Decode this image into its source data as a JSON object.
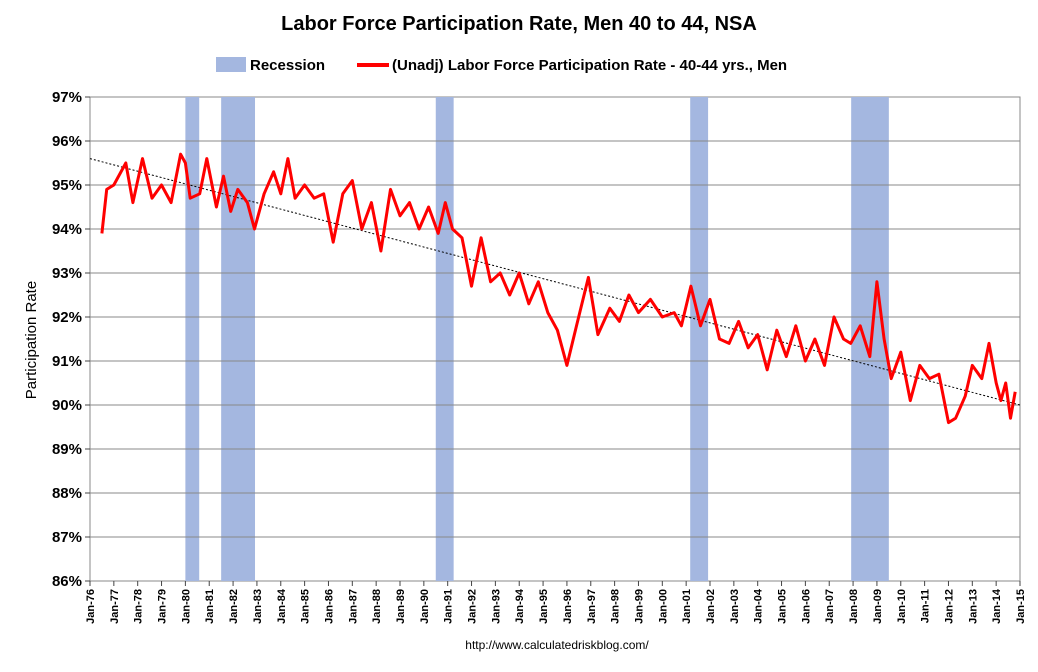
{
  "chart_data": {
    "type": "line",
    "title": "Labor Force Participation Rate, Men 40 to 44, NSA",
    "xlabel": "",
    "ylabel": "Participation Rate",
    "ylim": [
      86,
      97
    ],
    "yticks": [
      "86%",
      "87%",
      "88%",
      "89%",
      "90%",
      "91%",
      "92%",
      "93%",
      "94%",
      "95%",
      "96%",
      "97%"
    ],
    "x_tick_labels": [
      "Jan-76",
      "Jan-77",
      "Jan-78",
      "Jan-79",
      "Jan-80",
      "Jan-81",
      "Jan-82",
      "Jan-83",
      "Jan-84",
      "Jan-85",
      "Jan-86",
      "Jan-87",
      "Jan-88",
      "Jan-89",
      "Jan-90",
      "Jan-91",
      "Jan-92",
      "Jan-93",
      "Jan-94",
      "Jan-95",
      "Jan-96",
      "Jan-97",
      "Jan-98",
      "Jan-99",
      "Jan-00",
      "Jan-01",
      "Jan-02",
      "Jan-03",
      "Jan-04",
      "Jan-05",
      "Jan-06",
      "Jan-07",
      "Jan-08",
      "Jan-09",
      "Jan-10",
      "Jan-11",
      "Jan-12",
      "Jan-13",
      "Jan-14",
      "Jan-15"
    ],
    "xlim": [
      1976,
      2015
    ],
    "grid": true,
    "legend_position": "top",
    "legend": [
      {
        "label": "Recession",
        "kind": "band",
        "color": "#a4b7e0"
      },
      {
        "label": "(Unadj) Labor Force Participation Rate - 40-44 yrs., Men",
        "kind": "line",
        "color": "#ff0000"
      }
    ],
    "recessions": [
      {
        "start": 1980.0,
        "end": 1980.58
      },
      {
        "start": 1981.5,
        "end": 1982.92
      },
      {
        "start": 1990.5,
        "end": 1991.25
      },
      {
        "start": 2001.17,
        "end": 2001.92
      },
      {
        "start": 2007.92,
        "end": 2009.5
      }
    ],
    "series": [
      {
        "name": "(Unadj) Labor Force Participation Rate - 40-44 yrs., Men",
        "color": "#ff0000",
        "points": [
          [
            1976.5,
            93.9
          ],
          [
            1976.7,
            94.9
          ],
          [
            1977.0,
            95.0
          ],
          [
            1977.5,
            95.5
          ],
          [
            1977.8,
            94.6
          ],
          [
            1978.2,
            95.6
          ],
          [
            1978.6,
            94.7
          ],
          [
            1979.0,
            95.0
          ],
          [
            1979.4,
            94.6
          ],
          [
            1979.8,
            95.7
          ],
          [
            1980.0,
            95.5
          ],
          [
            1980.2,
            94.7
          ],
          [
            1980.6,
            94.8
          ],
          [
            1980.9,
            95.6
          ],
          [
            1981.3,
            94.5
          ],
          [
            1981.6,
            95.2
          ],
          [
            1981.9,
            94.4
          ],
          [
            1982.2,
            94.9
          ],
          [
            1982.6,
            94.6
          ],
          [
            1982.9,
            94.0
          ],
          [
            1983.3,
            94.8
          ],
          [
            1983.7,
            95.3
          ],
          [
            1984.0,
            94.8
          ],
          [
            1984.3,
            95.6
          ],
          [
            1984.6,
            94.7
          ],
          [
            1985.0,
            95.0
          ],
          [
            1985.4,
            94.7
          ],
          [
            1985.8,
            94.8
          ],
          [
            1986.2,
            93.7
          ],
          [
            1986.6,
            94.8
          ],
          [
            1987.0,
            95.1
          ],
          [
            1987.4,
            94.0
          ],
          [
            1987.8,
            94.6
          ],
          [
            1988.2,
            93.5
          ],
          [
            1988.6,
            94.9
          ],
          [
            1989.0,
            94.3
          ],
          [
            1989.4,
            94.6
          ],
          [
            1989.8,
            94.0
          ],
          [
            1990.2,
            94.5
          ],
          [
            1990.6,
            93.9
          ],
          [
            1990.9,
            94.6
          ],
          [
            1991.2,
            94.0
          ],
          [
            1991.6,
            93.8
          ],
          [
            1992.0,
            92.7
          ],
          [
            1992.4,
            93.8
          ],
          [
            1992.8,
            92.8
          ],
          [
            1993.2,
            93.0
          ],
          [
            1993.6,
            92.5
          ],
          [
            1994.0,
            93.0
          ],
          [
            1994.4,
            92.3
          ],
          [
            1994.8,
            92.8
          ],
          [
            1995.2,
            92.1
          ],
          [
            1995.6,
            91.7
          ],
          [
            1996.0,
            90.9
          ],
          [
            1996.4,
            91.8
          ],
          [
            1996.9,
            92.9
          ],
          [
            1997.3,
            91.6
          ],
          [
            1997.8,
            92.2
          ],
          [
            1998.2,
            91.9
          ],
          [
            1998.6,
            92.5
          ],
          [
            1999.0,
            92.1
          ],
          [
            1999.5,
            92.4
          ],
          [
            2000.0,
            92.0
          ],
          [
            2000.5,
            92.1
          ],
          [
            2000.8,
            91.8
          ],
          [
            2001.2,
            92.7
          ],
          [
            2001.6,
            91.8
          ],
          [
            2002.0,
            92.4
          ],
          [
            2002.4,
            91.5
          ],
          [
            2002.8,
            91.4
          ],
          [
            2003.2,
            91.9
          ],
          [
            2003.6,
            91.3
          ],
          [
            2004.0,
            91.6
          ],
          [
            2004.4,
            90.8
          ],
          [
            2004.8,
            91.7
          ],
          [
            2005.2,
            91.1
          ],
          [
            2005.6,
            91.8
          ],
          [
            2006.0,
            91.0
          ],
          [
            2006.4,
            91.5
          ],
          [
            2006.8,
            90.9
          ],
          [
            2007.2,
            92.0
          ],
          [
            2007.6,
            91.5
          ],
          [
            2007.9,
            91.4
          ],
          [
            2008.3,
            91.8
          ],
          [
            2008.7,
            91.1
          ],
          [
            2009.0,
            92.8
          ],
          [
            2009.3,
            91.5
          ],
          [
            2009.6,
            90.6
          ],
          [
            2010.0,
            91.2
          ],
          [
            2010.4,
            90.1
          ],
          [
            2010.8,
            90.9
          ],
          [
            2011.2,
            90.6
          ],
          [
            2011.6,
            90.7
          ],
          [
            2012.0,
            89.6
          ],
          [
            2012.3,
            89.7
          ],
          [
            2012.7,
            90.2
          ],
          [
            2013.0,
            90.9
          ],
          [
            2013.4,
            90.6
          ],
          [
            2013.7,
            91.4
          ],
          [
            2014.0,
            90.5
          ],
          [
            2014.2,
            90.1
          ],
          [
            2014.4,
            90.5
          ],
          [
            2014.6,
            89.7
          ],
          [
            2014.8,
            90.3
          ]
        ]
      }
    ],
    "trendline": {
      "start": [
        1976,
        95.6
      ],
      "end": [
        2015,
        90.0
      ],
      "color": "#000000",
      "style": "dotted"
    }
  },
  "footer": {
    "credit": "http://www.calculatedriskblog.com/"
  }
}
